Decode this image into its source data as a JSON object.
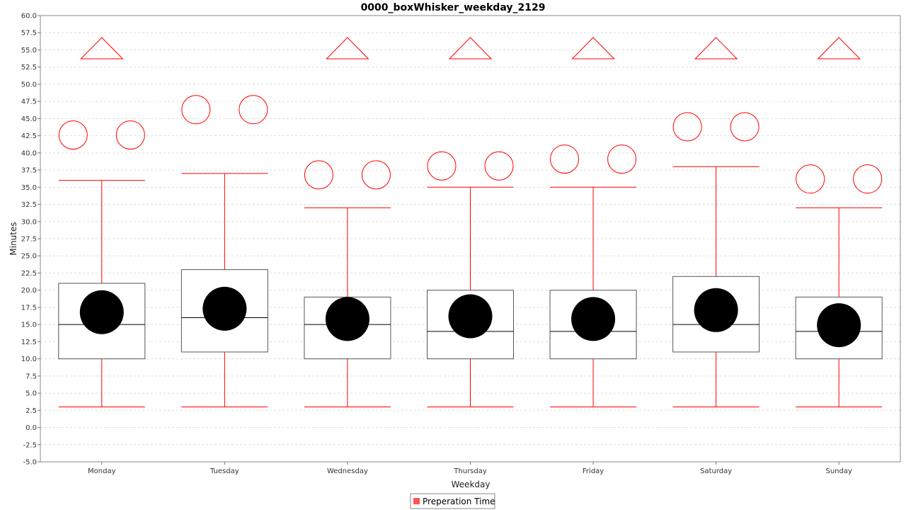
{
  "chart_data": {
    "type": "boxplot",
    "title": "0000_boxWhisker_weekday_2129",
    "xlabel": "Weekday",
    "ylabel": "Minutes",
    "ylim": [
      -5.0,
      60.0
    ],
    "ytick_step": 2.5,
    "grid": true,
    "legend_position": "bottom-center",
    "categories": [
      "Monday",
      "Tuesday",
      "Wednesday",
      "Thursday",
      "Friday",
      "Saturday",
      "Sunday"
    ],
    "series": [
      {
        "name": "Preperation Time",
        "color": "#ff0000",
        "boxes": [
          {
            "category": "Monday",
            "min": 3.0,
            "q1": 10.0,
            "median": 15.0,
            "q3": 21.0,
            "max": 36.0,
            "mean": 16.8,
            "outliers": [
              42.6
            ],
            "far_out": true
          },
          {
            "category": "Tuesday",
            "min": 3.0,
            "q1": 11.0,
            "median": 16.0,
            "q3": 23.0,
            "max": 37.0,
            "mean": 17.3,
            "outliers": [
              46.3
            ],
            "far_out": false
          },
          {
            "category": "Wednesday",
            "min": 3.0,
            "q1": 10.0,
            "median": 15.0,
            "q3": 19.0,
            "max": 32.0,
            "mean": 15.8,
            "outliers": [
              36.8
            ],
            "far_out": true
          },
          {
            "category": "Thursday",
            "min": 3.0,
            "q1": 10.0,
            "median": 14.0,
            "q3": 20.0,
            "max": 35.0,
            "mean": 16.2,
            "outliers": [
              38.1
            ],
            "far_out": true
          },
          {
            "category": "Friday",
            "min": 3.0,
            "q1": 10.0,
            "median": 14.0,
            "q3": 20.0,
            "max": 35.0,
            "mean": 15.8,
            "outliers": [
              39.1
            ],
            "far_out": true
          },
          {
            "category": "Saturday",
            "min": 3.0,
            "q1": 11.0,
            "median": 15.0,
            "q3": 22.0,
            "max": 38.0,
            "mean": 17.1,
            "outliers": [
              43.8
            ],
            "far_out": true
          },
          {
            "category": "Sunday",
            "min": 3.0,
            "q1": 10.0,
            "median": 14.0,
            "q3": 19.0,
            "max": 32.0,
            "mean": 14.9,
            "outliers": [
              36.2
            ],
            "far_out": true
          }
        ]
      }
    ]
  }
}
